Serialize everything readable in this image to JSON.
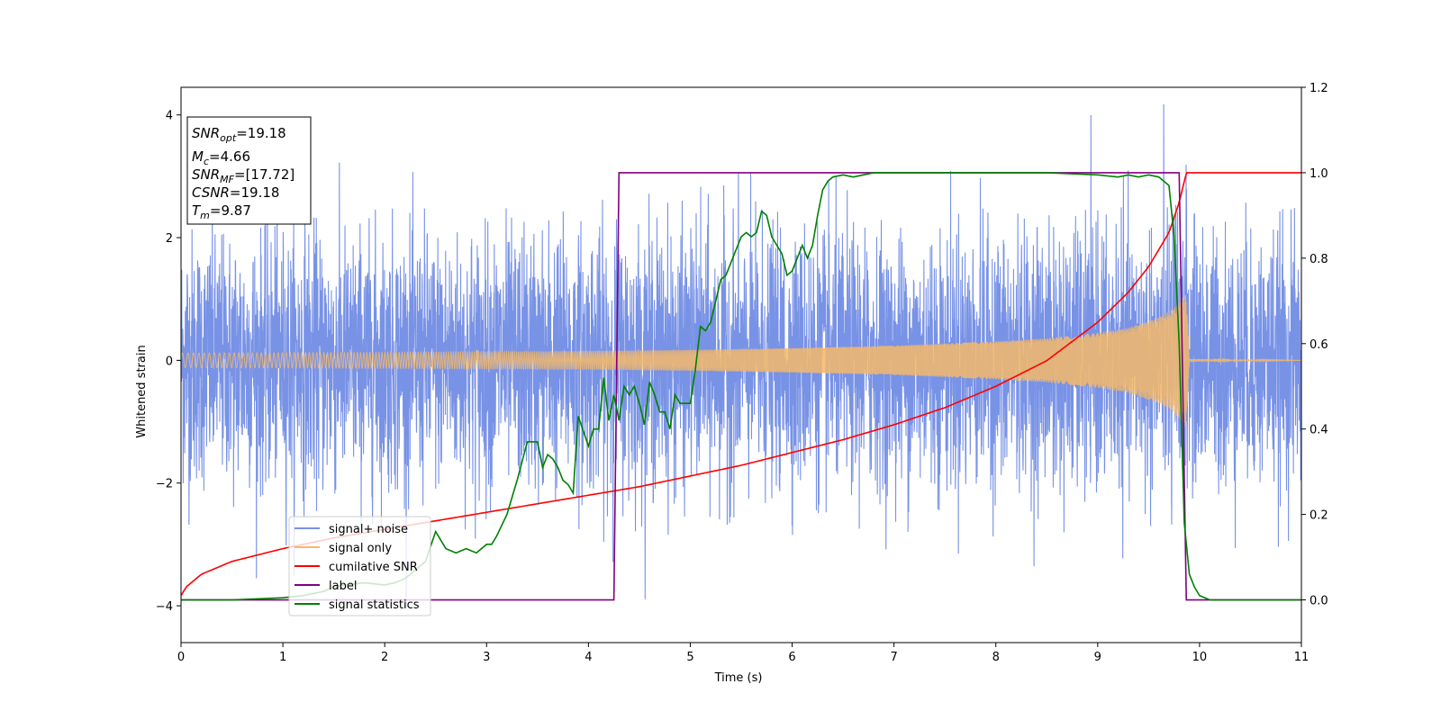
{
  "chart_data": {
    "type": "line",
    "xlabel": "Time (s)",
    "ylabel": "Whitened strain",
    "xlim": [
      0,
      11
    ],
    "ylim_left": [
      -4.6,
      4.45
    ],
    "ylim_right": [
      -0.1,
      1.2
    ],
    "x_ticks": [
      "0",
      "1",
      "2",
      "3",
      "4",
      "5",
      "6",
      "7",
      "8",
      "9",
      "10",
      "11"
    ],
    "x_tick_values": [
      0,
      1,
      2,
      3,
      4,
      5,
      6,
      7,
      8,
      9,
      10,
      11
    ],
    "y_left_ticks": [
      "−4",
      "−2",
      "0",
      "2",
      "4"
    ],
    "y_left_tick_values": [
      -4,
      -2,
      0,
      2,
      4
    ],
    "y_right_ticks": [
      "0.0",
      "0.2",
      "0.4",
      "0.6",
      "0.8",
      "1.0",
      "1.2"
    ],
    "y_right_tick_values": [
      0.0,
      0.2,
      0.4,
      0.6,
      0.8,
      1.0,
      1.2
    ],
    "grid": false,
    "legend_placement": "lower-left",
    "info_box": {
      "snr_opt_label": "SNR",
      "snr_opt_sub": "opt",
      "snr_opt_value": "=19.18",
      "mc_label": "M",
      "mc_sub": "c",
      "mc_value": "=4.66",
      "snr_mf_label": "SNR",
      "snr_mf_sub": "MF",
      "snr_mf_value": "=[17.72]",
      "csnr_label": "CSNR",
      "csnr_value": "=19.18",
      "tm_label": "T",
      "tm_sub": "m",
      "tm_value": "=9.87"
    },
    "series": [
      {
        "name": "signal+ noise",
        "axis": "left",
        "color": "#7892e6",
        "description_level": "noise amplitude about ±3.3, peaks near 4",
        "noise_sigma": 1.0
      },
      {
        "name": "signal only",
        "axis": "left",
        "color": "#f4b968",
        "chirp_envelope": {
          "x": [
            0,
            2,
            4,
            5,
            6,
            7,
            8,
            8.5,
            9,
            9.3,
            9.6,
            9.75,
            9.85,
            9.87,
            9.9,
            11
          ],
          "amplitude": [
            0.12,
            0.13,
            0.15,
            0.17,
            0.2,
            0.24,
            0.31,
            0.36,
            0.45,
            0.53,
            0.7,
            0.85,
            1.05,
            1.1,
            0.02,
            0.0
          ]
        }
      },
      {
        "name": "cumilative SNR",
        "axis": "right",
        "color": "#ff0000",
        "x": [
          0,
          0.05,
          0.2,
          0.5,
          1,
          1.5,
          2,
          2.5,
          3,
          3.5,
          4,
          4.5,
          5,
          5.5,
          6,
          6.5,
          7,
          7.5,
          8,
          8.5,
          9,
          9.3,
          9.5,
          9.7,
          9.8,
          9.87,
          11
        ],
        "y": [
          0.01,
          0.03,
          0.06,
          0.09,
          0.12,
          0.145,
          0.165,
          0.185,
          0.205,
          0.225,
          0.245,
          0.265,
          0.29,
          0.315,
          0.345,
          0.375,
          0.41,
          0.45,
          0.5,
          0.56,
          0.65,
          0.72,
          0.78,
          0.86,
          0.93,
          1.0,
          1.0
        ]
      },
      {
        "name": "label",
        "axis": "right",
        "color": "#800080",
        "x": [
          0,
          4.25,
          4.3,
          9.8,
          9.87,
          11
        ],
        "y": [
          0.0,
          0.0,
          1.0,
          1.0,
          0.0,
          0.0
        ]
      },
      {
        "name": "signal statistics",
        "axis": "right",
        "color": "#008000",
        "x": [
          0,
          0.5,
          1,
          1.2,
          1.4,
          1.5,
          1.6,
          1.8,
          2.0,
          2.1,
          2.2,
          2.3,
          2.4,
          2.5,
          2.6,
          2.7,
          2.8,
          2.9,
          3.0,
          3.05,
          3.1,
          3.2,
          3.3,
          3.4,
          3.5,
          3.55,
          3.6,
          3.65,
          3.7,
          3.75,
          3.8,
          3.85,
          3.9,
          4.0,
          4.05,
          4.1,
          4.15,
          4.2,
          4.25,
          4.3,
          4.35,
          4.4,
          4.45,
          4.5,
          4.55,
          4.6,
          4.65,
          4.7,
          4.75,
          4.8,
          4.85,
          4.9,
          4.95,
          5.0,
          5.05,
          5.1,
          5.15,
          5.2,
          5.25,
          5.3,
          5.35,
          5.4,
          5.45,
          5.5,
          5.55,
          5.6,
          5.65,
          5.7,
          5.75,
          5.8,
          5.85,
          5.9,
          5.95,
          6.0,
          6.05,
          6.1,
          6.15,
          6.2,
          6.25,
          6.3,
          6.35,
          6.4,
          6.5,
          6.6,
          6.7,
          6.8,
          7.0,
          7.2,
          7.5,
          8.0,
          8.5,
          9.0,
          9.2,
          9.3,
          9.4,
          9.5,
          9.6,
          9.7,
          9.75,
          9.8,
          9.85,
          9.9,
          9.95,
          10.0,
          10.1,
          10.3,
          11
        ],
        "y": [
          0.0,
          0.0,
          0.005,
          0.01,
          0.02,
          0.03,
          0.035,
          0.04,
          0.035,
          0.04,
          0.05,
          0.07,
          0.09,
          0.16,
          0.12,
          0.11,
          0.12,
          0.11,
          0.13,
          0.13,
          0.15,
          0.2,
          0.28,
          0.37,
          0.37,
          0.31,
          0.34,
          0.33,
          0.31,
          0.28,
          0.27,
          0.25,
          0.43,
          0.36,
          0.4,
          0.4,
          0.52,
          0.42,
          0.48,
          0.42,
          0.5,
          0.48,
          0.5,
          0.46,
          0.41,
          0.51,
          0.48,
          0.44,
          0.44,
          0.4,
          0.48,
          0.46,
          0.46,
          0.46,
          0.54,
          0.64,
          0.63,
          0.65,
          0.7,
          0.75,
          0.76,
          0.79,
          0.82,
          0.85,
          0.86,
          0.85,
          0.86,
          0.91,
          0.9,
          0.85,
          0.83,
          0.81,
          0.76,
          0.77,
          0.8,
          0.83,
          0.8,
          0.83,
          0.9,
          0.96,
          0.98,
          0.99,
          0.995,
          0.99,
          0.995,
          1.0,
          1.0,
          1.0,
          1.0,
          1.0,
          1.0,
          0.995,
          0.99,
          0.995,
          0.99,
          0.995,
          0.99,
          0.97,
          0.85,
          0.6,
          0.18,
          0.06,
          0.03,
          0.01,
          0.0,
          0.0,
          0.0
        ]
      }
    ]
  }
}
